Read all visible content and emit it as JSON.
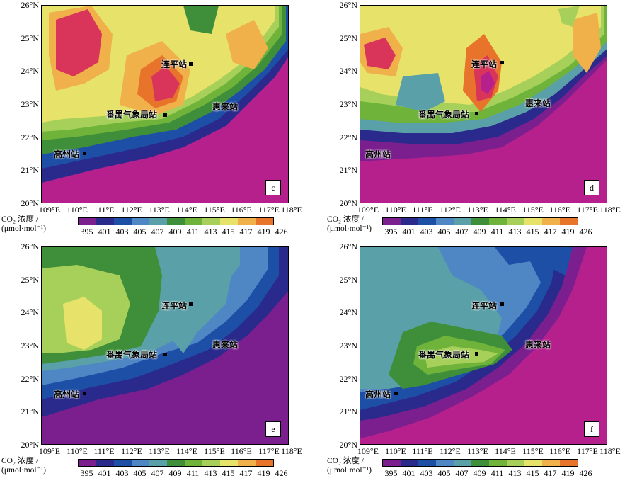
{
  "panels": [
    {
      "id": "c",
      "letter": "c"
    },
    {
      "id": "d",
      "letter": "d"
    },
    {
      "id": "e",
      "letter": "e"
    },
    {
      "id": "f",
      "letter": "f"
    }
  ],
  "axes": {
    "lat_labels": [
      "26°N",
      "25°N",
      "24°N",
      "23°N",
      "22°N",
      "21°N",
      "20°N"
    ],
    "lon_labels": [
      "109°E",
      "110°E",
      "111°E",
      "112°E",
      "113°E",
      "114°E",
      "115°E",
      "116°E",
      "117°E",
      "118°E"
    ]
  },
  "stations": {
    "lianping": "连平站",
    "panyu": "番禺气象局站",
    "huilai": "惠来站",
    "gaozhou": "高州站"
  },
  "legend": {
    "title_line1": "CO₂ 浓度 /",
    "title_line2": "(μmol·mol⁻¹)",
    "values": [
      "395",
      "401",
      "403",
      "405",
      "407",
      "409",
      "411",
      "413",
      "415",
      "417",
      "419",
      "426"
    ],
    "colors": [
      "#7b1f8f",
      "#2a2a8c",
      "#1e4fa6",
      "#4f86c4",
      "#5aa0a8",
      "#3f8f3a",
      "#6fb33a",
      "#a6d05a",
      "#e6e26a",
      "#f0b04a",
      "#e8742c",
      "#d9345a"
    ]
  }
}
